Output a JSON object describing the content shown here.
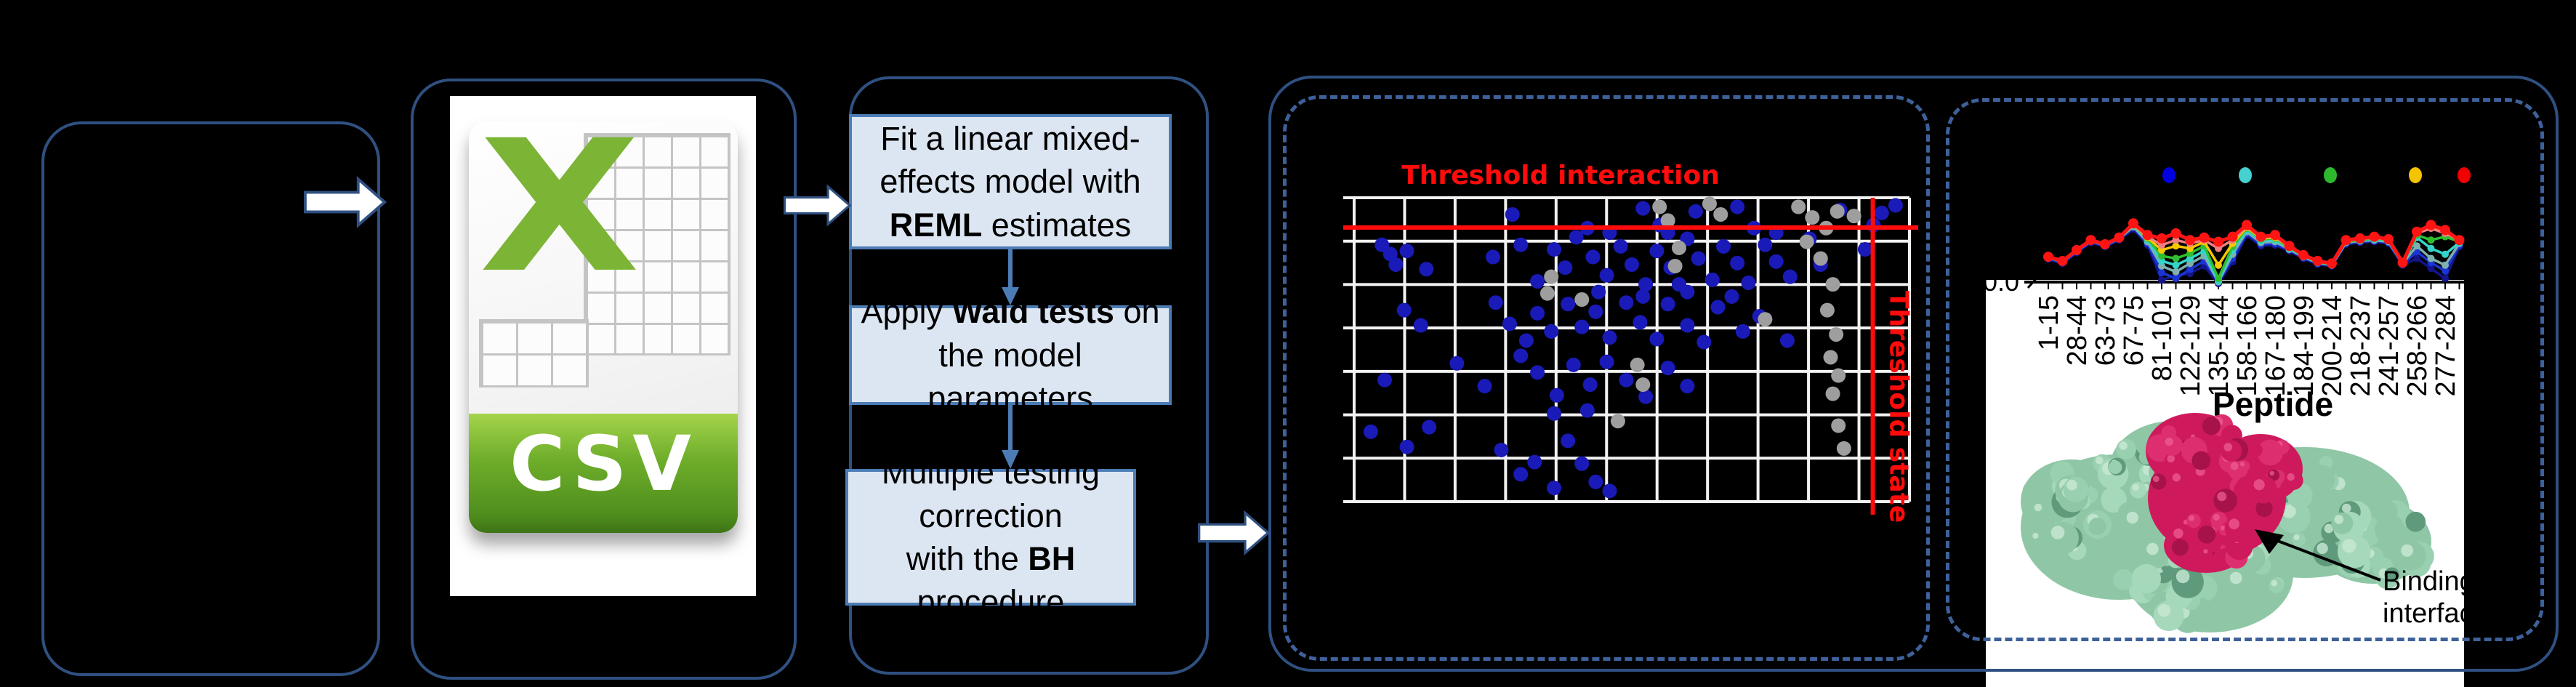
{
  "flow": {
    "step1": {
      "l1": "Fit a linear mixed-",
      "l2": "effects model with",
      "l3b": "REML",
      "l3r": " estimates"
    },
    "step2": {
      "l1a": "Apply ",
      "l1b": "Wald tests",
      "l1c": " on",
      "l2": "the model parameters"
    },
    "step3": {
      "l1": "Multiple testing",
      "l2": "correction",
      "l3a": "with the ",
      "l3b": "BH",
      "l3c": " procedure"
    }
  },
  "csv": {
    "label": "CSV"
  },
  "colors": {
    "panel_border": "#2F5080",
    "dashed_border": "#3E619B",
    "box_fill": "#DCE6F2",
    "box_border": "#4C7CB5",
    "threshold_red": "#FF0B0B",
    "scatter_blue": "#1A1AB8",
    "scatter_gray": "#9E9E9E",
    "grid_white": "#F2F2F2"
  },
  "chart_data": [
    {
      "type": "scatter",
      "title": "Threshold interaction",
      "vline_label": "Threshold state",
      "grid": {
        "cols": 11,
        "rows": 7
      },
      "thresholds": {
        "h_frac": 0.098,
        "v_frac": 0.934
      },
      "series": [
        {
          "name": "blue-points",
          "color": "#1A1AB8",
          "points": [
            [
              0.285,
              0.055
            ],
            [
              0.42,
              0.1
            ],
            [
              0.46,
              0.115
            ],
            [
              0.52,
              0.035
            ],
            [
              0.55,
              0.09
            ],
            [
              0.565,
              0.115
            ],
            [
              0.615,
              0.045
            ],
            [
              0.69,
              0.03
            ],
            [
              0.72,
              0.1
            ],
            [
              0.76,
              0.115
            ],
            [
              0.875,
              0.04
            ],
            [
              0.95,
              0.05
            ],
            [
              0.975,
              0.025
            ],
            [
              0.935,
              0.09
            ],
            [
              0.05,
              0.155
            ],
            [
              0.065,
              0.185
            ],
            [
              0.075,
              0.22
            ],
            [
              0.095,
              0.175
            ],
            [
              0.13,
              0.235
            ],
            [
              0.25,
              0.195
            ],
            [
              0.3,
              0.155
            ],
            [
              0.33,
              0.275
            ],
            [
              0.36,
              0.17
            ],
            [
              0.38,
              0.23
            ],
            [
              0.4,
              0.13
            ],
            [
              0.43,
              0.195
            ],
            [
              0.455,
              0.255
            ],
            [
              0.48,
              0.16
            ],
            [
              0.5,
              0.22
            ],
            [
              0.525,
              0.285
            ],
            [
              0.545,
              0.175
            ],
            [
              0.57,
              0.23
            ],
            [
              0.6,
              0.135
            ],
            [
              0.62,
              0.2
            ],
            [
              0.645,
              0.27
            ],
            [
              0.665,
              0.16
            ],
            [
              0.69,
              0.215
            ],
            [
              0.71,
              0.28
            ],
            [
              0.74,
              0.155
            ],
            [
              0.76,
              0.21
            ],
            [
              0.785,
              0.26
            ],
            [
              0.82,
              0.135
            ],
            [
              0.84,
              0.22
            ],
            [
              0.92,
              0.17
            ],
            [
              0.585,
              0.285
            ],
            [
              0.09,
              0.37
            ],
            [
              0.12,
              0.42
            ],
            [
              0.255,
              0.345
            ],
            [
              0.28,
              0.415
            ],
            [
              0.33,
              0.38
            ],
            [
              0.355,
              0.44
            ],
            [
              0.385,
              0.35
            ],
            [
              0.41,
              0.425
            ],
            [
              0.435,
              0.375
            ],
            [
              0.46,
              0.46
            ],
            [
              0.49,
              0.345
            ],
            [
              0.515,
              0.41
            ],
            [
              0.545,
              0.465
            ],
            [
              0.565,
              0.35
            ],
            [
              0.6,
              0.42
            ],
            [
              0.63,
              0.475
            ],
            [
              0.655,
              0.36
            ],
            [
              0.7,
              0.44
            ],
            [
              0.73,
              0.39
            ],
            [
              0.78,
              0.47
            ],
            [
              0.44,
              0.31
            ],
            [
              0.52,
              0.325
            ],
            [
              0.6,
              0.31
            ],
            [
              0.68,
              0.325
            ],
            [
              0.31,
              0.47
            ],
            [
              0.055,
              0.6
            ],
            [
              0.185,
              0.545
            ],
            [
              0.235,
              0.62
            ],
            [
              0.3,
              0.52
            ],
            [
              0.33,
              0.575
            ],
            [
              0.365,
              0.65
            ],
            [
              0.395,
              0.55
            ],
            [
              0.425,
              0.615
            ],
            [
              0.455,
              0.54
            ],
            [
              0.49,
              0.6
            ],
            [
              0.525,
              0.655
            ],
            [
              0.565,
              0.56
            ],
            [
              0.6,
              0.62
            ],
            [
              0.36,
              0.71
            ],
            [
              0.42,
              0.7
            ],
            [
              0.03,
              0.77
            ],
            [
              0.095,
              0.82
            ],
            [
              0.135,
              0.755
            ],
            [
              0.265,
              0.83
            ],
            [
              0.3,
              0.91
            ],
            [
              0.325,
              0.87
            ],
            [
              0.36,
              0.955
            ],
            [
              0.385,
              0.8
            ],
            [
              0.41,
              0.875
            ],
            [
              0.435,
              0.935
            ],
            [
              0.46,
              0.965
            ]
          ]
        },
        {
          "name": "gray-points",
          "color": "#9E9E9E",
          "points": [
            [
              0.55,
              0.03
            ],
            [
              0.565,
              0.075
            ],
            [
              0.585,
              0.165
            ],
            [
              0.578,
              0.225
            ],
            [
              0.64,
              0.02
            ],
            [
              0.66,
              0.055
            ],
            [
              0.355,
              0.26
            ],
            [
              0.348,
              0.315
            ],
            [
              0.41,
              0.335
            ],
            [
              0.74,
              0.4
            ],
            [
              0.8,
              0.03
            ],
            [
              0.825,
              0.065
            ],
            [
              0.85,
              0.1
            ],
            [
              0.87,
              0.045
            ],
            [
              0.9,
              0.06
            ],
            [
              0.815,
              0.145
            ],
            [
              0.84,
              0.2
            ],
            [
              0.862,
              0.285
            ],
            [
              0.852,
              0.37
            ],
            [
              0.868,
              0.45
            ],
            [
              0.858,
              0.525
            ],
            [
              0.872,
              0.585
            ],
            [
              0.862,
              0.645
            ],
            [
              0.872,
              0.75
            ],
            [
              0.882,
              0.825
            ],
            [
              0.51,
              0.55
            ],
            [
              0.52,
              0.615
            ],
            [
              0.475,
              0.735
            ]
          ]
        }
      ]
    },
    {
      "type": "line",
      "xlabel": "Peptide",
      "y_tick_label": "0.0",
      "categories": [
        "1-15",
        "28-44",
        "63-73",
        "67-75",
        "81-101",
        "122-129",
        "135-144",
        "158-166",
        "167-180",
        "184-199",
        "200-214",
        "218-237",
        "241-257",
        "258-266",
        "277-284"
      ],
      "legend_dot_colors": [
        "#0000E0",
        "#45D1CF",
        "#2EB82E",
        "#F5C400",
        "#F00000"
      ],
      "series": [
        {
          "name": "navy",
          "color": "#14148C",
          "values": [
            0.29,
            0.24,
            0.37,
            0.49,
            0.44,
            0.52,
            0.65,
            0.46,
            0.04,
            0.1,
            0.12,
            0.21,
            0.0,
            0.26,
            0.58,
            0.45,
            0.46,
            0.39,
            0.3,
            0.23,
            0.21,
            0.47,
            0.49,
            0.5,
            0.48,
            0.22,
            0.3,
            0.18,
            0.06,
            0.44
          ]
        },
        {
          "name": "blue",
          "color": "#1A35D4",
          "values": [
            0.3,
            0.25,
            0.38,
            0.5,
            0.45,
            0.53,
            0.67,
            0.48,
            0.13,
            0.06,
            0.17,
            0.27,
            0.02,
            0.3,
            0.6,
            0.47,
            0.48,
            0.4,
            0.31,
            0.24,
            0.22,
            0.48,
            0.5,
            0.51,
            0.49,
            0.23,
            0.38,
            0.25,
            0.15,
            0.46
          ]
        },
        {
          "name": "steel",
          "color": "#7FAFAF",
          "values": [
            0.31,
            0.26,
            0.39,
            0.51,
            0.46,
            0.54,
            0.68,
            0.5,
            0.21,
            0.14,
            0.24,
            0.33,
            0.02,
            0.35,
            0.62,
            0.49,
            0.5,
            0.41,
            0.32,
            0.25,
            0.22,
            0.49,
            0.51,
            0.52,
            0.5,
            0.24,
            0.45,
            0.3,
            0.22,
            0.48
          ]
        },
        {
          "name": "cyan",
          "color": "#35D4C8",
          "values": [
            0.32,
            0.27,
            0.4,
            0.52,
            0.47,
            0.55,
            0.69,
            0.52,
            0.27,
            0.22,
            0.3,
            0.39,
            0.03,
            0.4,
            0.64,
            0.51,
            0.52,
            0.42,
            0.32,
            0.25,
            0.23,
            0.5,
            0.52,
            0.53,
            0.51,
            0.24,
            0.55,
            0.42,
            0.35,
            0.49
          ]
        },
        {
          "name": "green",
          "color": "#2FBE2F",
          "values": [
            0.32,
            0.27,
            0.4,
            0.52,
            0.47,
            0.55,
            0.7,
            0.54,
            0.33,
            0.3,
            0.36,
            0.45,
            0.06,
            0.44,
            0.66,
            0.53,
            0.54,
            0.43,
            0.33,
            0.26,
            0.23,
            0.5,
            0.52,
            0.54,
            0.52,
            0.24,
            0.58,
            0.52,
            0.56,
            0.5
          ]
        },
        {
          "name": "yellow",
          "color": "#F7C800",
          "values": [
            0.32,
            0.27,
            0.4,
            0.52,
            0.47,
            0.55,
            0.7,
            0.55,
            0.4,
            0.45,
            0.42,
            0.5,
            0.22,
            0.48,
            0.67,
            0.54,
            0.55,
            0.44,
            0.33,
            0.26,
            0.24,
            0.51,
            0.53,
            0.55,
            0.52,
            0.25,
            0.62,
            0.68,
            0.62,
            0.51
          ]
        },
        {
          "name": "salmon",
          "color": "#F08080",
          "values": [
            0.32,
            0.27,
            0.4,
            0.52,
            0.47,
            0.55,
            0.7,
            0.56,
            0.46,
            0.52,
            0.48,
            0.52,
            0.42,
            0.52,
            0.68,
            0.55,
            0.56,
            0.44,
            0.33,
            0.26,
            0.24,
            0.51,
            0.53,
            0.55,
            0.52,
            0.25,
            0.6,
            0.66,
            0.6,
            0.52
          ]
        },
        {
          "name": "red",
          "color": "#FF1414",
          "values": [
            0.32,
            0.27,
            0.4,
            0.52,
            0.47,
            0.55,
            0.72,
            0.58,
            0.54,
            0.6,
            0.52,
            0.55,
            0.5,
            0.56,
            0.7,
            0.56,
            0.58,
            0.45,
            0.34,
            0.27,
            0.24,
            0.52,
            0.54,
            0.56,
            0.53,
            0.25,
            0.62,
            0.7,
            0.64,
            0.52
          ]
        }
      ],
      "annotation": {
        "l1": "Binding",
        "l2": "interface"
      }
    }
  ],
  "protein_colors": {
    "green_base": "#8FC7A6",
    "green_light": "#C9E8D5",
    "green_dark": "#5E9A7B",
    "magenta_base": "#CE1A5D",
    "magenta_dark": "#A8124A",
    "magenta_light": "#EE5C93"
  }
}
